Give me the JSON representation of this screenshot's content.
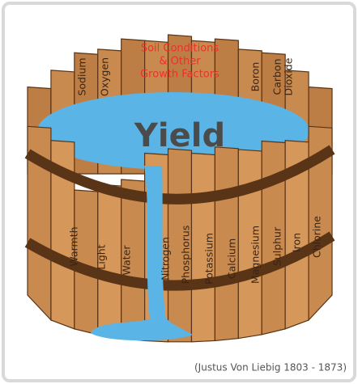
{
  "title": "Yield",
  "back_staves": [
    [
      "Sodium"
    ],
    [
      "Oxygen"
    ],
    [
      "Boron"
    ],
    [
      "Carbon",
      "Dioxide"
    ]
  ],
  "center_label": [
    "Soil Conditions",
    "& Other",
    "Growth Factors"
  ],
  "front_staves": [
    "Warmth",
    "Light",
    "Water",
    "Nitrogen",
    "Phosphorus",
    "Potassium",
    "Calcium",
    "Magnesium",
    "Sulphur",
    "Iron",
    "Chlorine"
  ],
  "caption": "(Justus Von Liebig 1803 - 1873)"
}
